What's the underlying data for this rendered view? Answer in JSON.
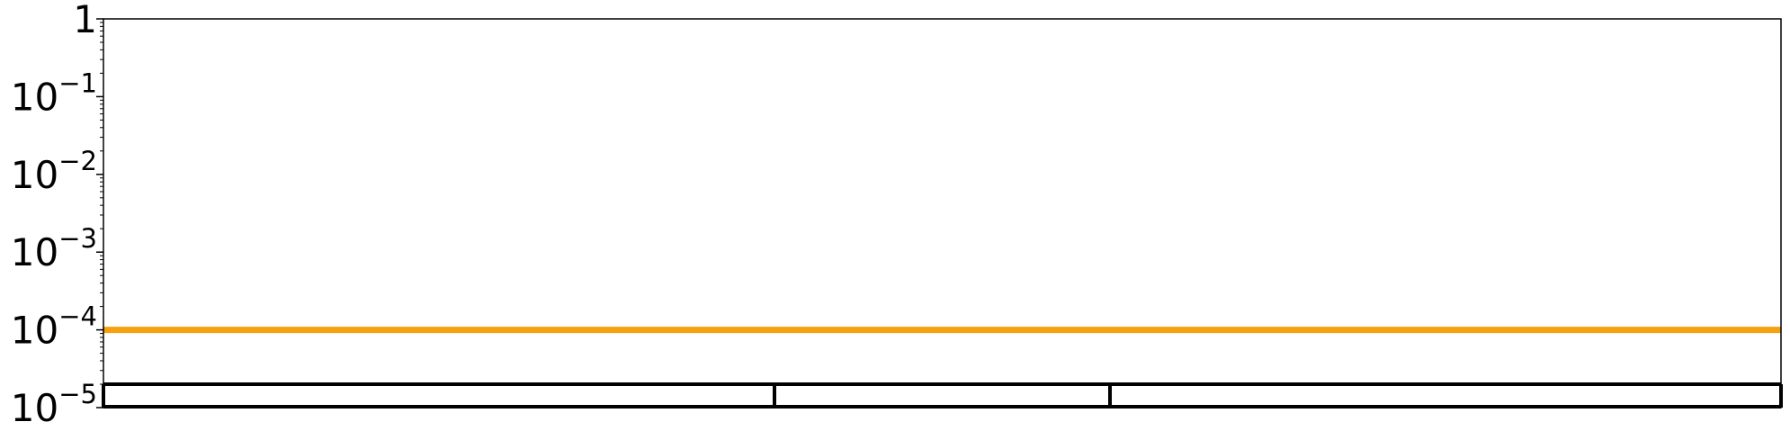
{
  "chart_data": {
    "type": "line",
    "title": "",
    "xlabel": "",
    "ylabel": "",
    "y_scale": "log",
    "ylim": [
      1e-05,
      1
    ],
    "y_ticks": [
      {
        "value": 1,
        "base": "1",
        "exp": ""
      },
      {
        "value": 0.1,
        "base": "10",
        "exp": "−1"
      },
      {
        "value": 0.01,
        "base": "10",
        "exp": "−2"
      },
      {
        "value": 0.001,
        "base": "10",
        "exp": "−3"
      },
      {
        "value": 0.0001,
        "base": "10",
        "exp": "−4"
      },
      {
        "value": 1e-05,
        "base": "10",
        "exp": "−5"
      }
    ],
    "x_tick_labels_visible": false,
    "grid": false,
    "legend": "none",
    "series": [
      {
        "color": "#f5a00f",
        "constant_value": 0.0001
      }
    ],
    "bottom_band": {
      "top_value": 2e-05,
      "dividers_fraction": [
        0,
        0.4,
        0.6,
        1
      ],
      "color": "#000000"
    }
  }
}
